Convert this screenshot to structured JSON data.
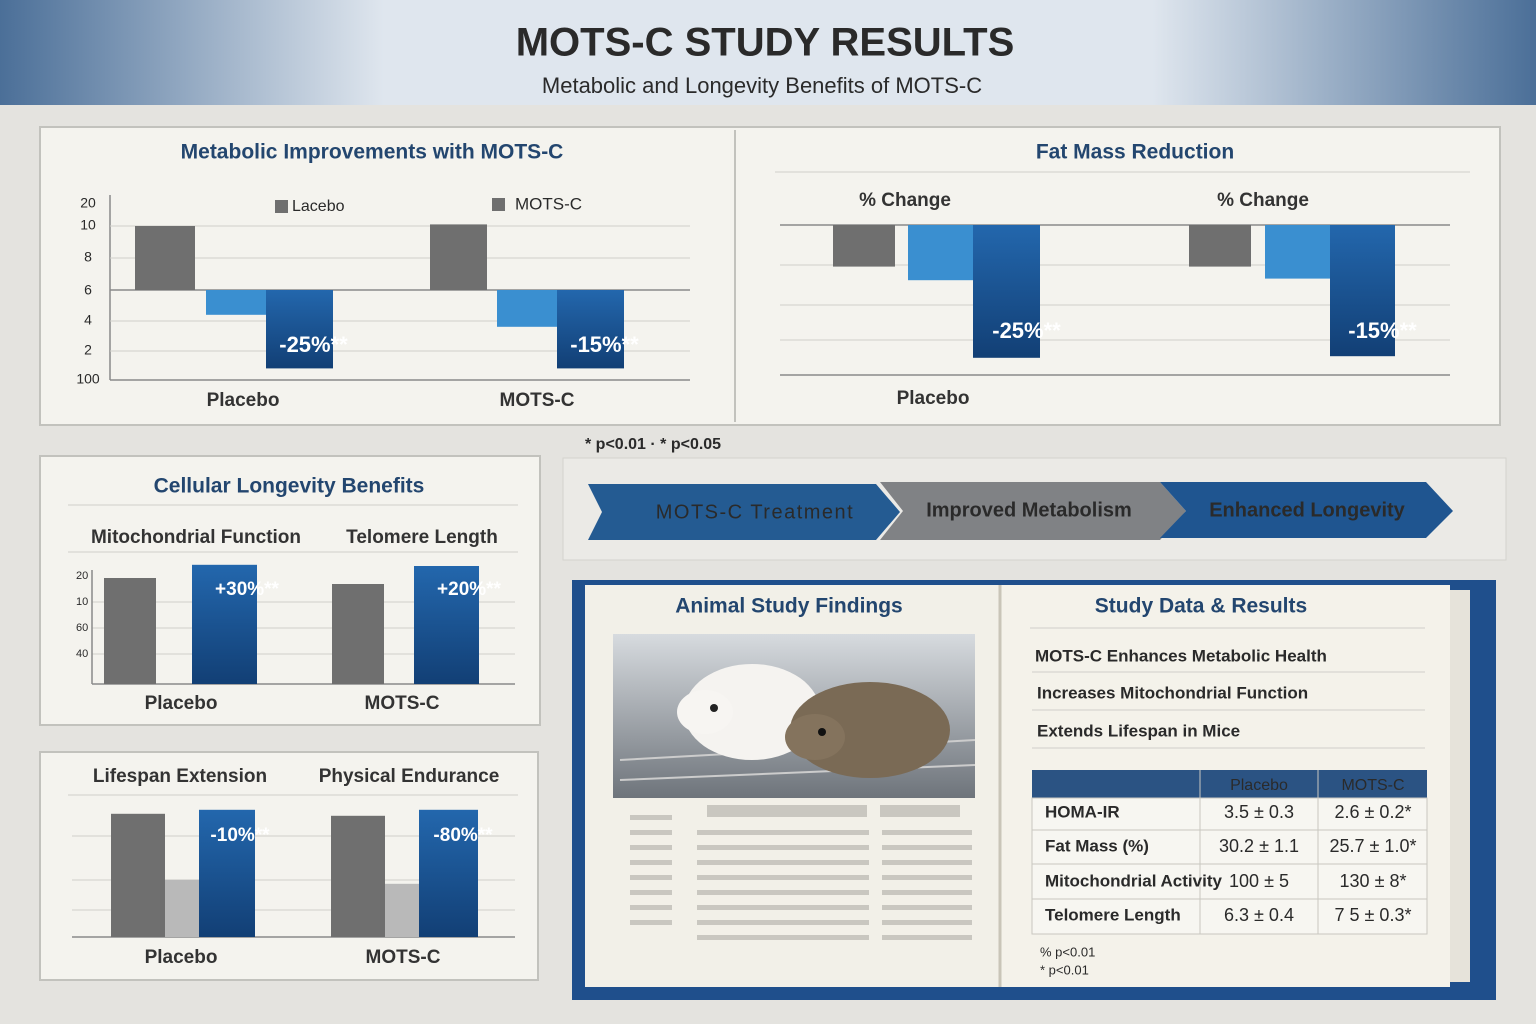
{
  "header": {
    "title": "MOTS-C STUDY RESULTS",
    "subtitle": "Metabolic and Longevity Benefits of MOTS-C"
  },
  "metabolic": {
    "title": "Metabolic Improvements with MOTS-C",
    "yticks": [
      20,
      10,
      8,
      6,
      4,
      2,
      100
    ],
    "legend": [
      "Lacebo",
      "MOTS-C"
    ],
    "categories": [
      "Placebo",
      "MOTS-C"
    ],
    "bars": [
      [
        8,
        -3.1,
        -9.8
      ],
      [
        8.2,
        -4.6,
        -9.8
      ]
    ],
    "value_labels": [
      "-25%**",
      "-15%**"
    ]
  },
  "fat": {
    "title": "Fat Mass Reduction",
    "subtitles": [
      "% Change",
      "% Change"
    ],
    "category": "Placebo",
    "bars": [
      [
        -5.2,
        -6.9,
        -16.6
      ],
      [
        -5.2,
        -6.7,
        -16.4
      ]
    ],
    "value_labels": [
      "-25%**",
      "-15%**"
    ]
  },
  "footnote": "* p<0.01 · * p<0.05",
  "cellular": {
    "title": "Cellular Longevity Benefits",
    "subtitles": [
      "Mitochondrial Function",
      "Telomere Length"
    ],
    "yticks": [
      20,
      10,
      60,
      40
    ],
    "categories": [
      "Placebo",
      "MOTS-C"
    ],
    "bars": [
      [
        26.5,
        29.8
      ],
      [
        25,
        29.5
      ]
    ],
    "value_labels": [
      "+30%**",
      "+20%**"
    ]
  },
  "lifespan": {
    "subtitles": [
      "Lifespan Extension",
      "Physical Endurance"
    ],
    "categories": [
      "Placebo",
      "MOTS-C"
    ],
    "bars": [
      [
        30.8,
        14.3,
        31.8
      ],
      [
        30.3,
        13.3,
        31.8
      ]
    ],
    "value_labels": [
      "-10%**",
      "-80%**"
    ]
  },
  "flow": [
    "MOTS-C Treatment",
    "Improved Metabolism",
    "Enhanced Longevity"
  ],
  "book": {
    "left_title": "Animal Study Findings",
    "right_title": "Study Data & Results",
    "findings": [
      "MOTS-C Enhances Metabolic Health",
      "Increases Mitochondrial Function",
      "Extends Lifespan in Mice"
    ],
    "table": {
      "header": [
        "Placebo",
        "MOTS-C"
      ],
      "rows": [
        [
          "HOMA-IR",
          "3.5 ± 0.3",
          "2.6 ± 0.2*"
        ],
        [
          "Fat Mass (%)",
          "30.2 ± 1.1",
          "25.7 ± 1.0*"
        ],
        [
          "Mitochondrial Activity",
          "100 ± 5",
          "130 ± 8*"
        ],
        [
          "Telomere Length",
          "6.3 ± 0.4",
          "7 5 ± 0.3*"
        ]
      ]
    },
    "notes": [
      "% p<0.01",
      "* p<0.01"
    ]
  }
}
